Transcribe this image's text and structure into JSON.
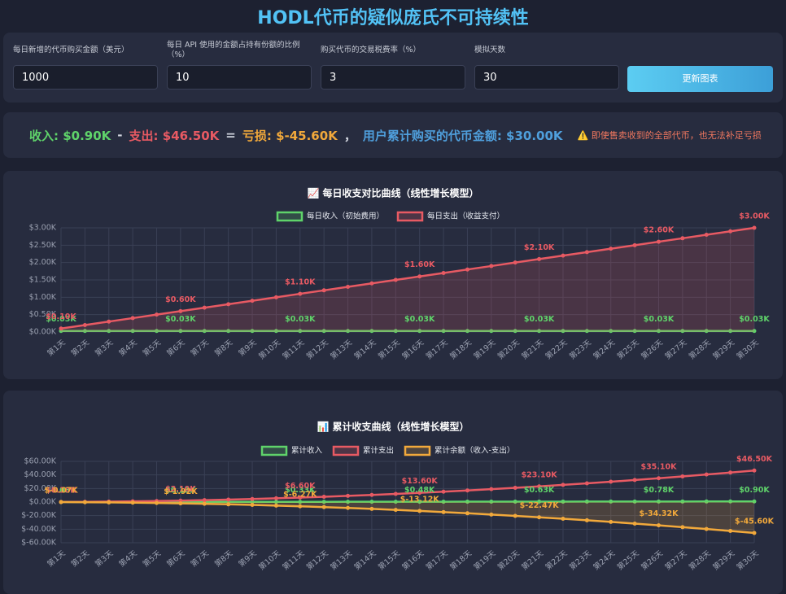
{
  "header": {
    "title": "HODL代币的疑似庞氏不可持续性"
  },
  "controls": {
    "fields": [
      {
        "label": "每日新增的代币购买金额（美元）",
        "value": "1000"
      },
      {
        "label": "每日 API 使用的金额占持有份额的比例（%）",
        "value": "10"
      },
      {
        "label": "购买代币的交易税费率（%）",
        "value": "3"
      },
      {
        "label": "模拟天数",
        "value": "30"
      }
    ],
    "button": "更新图表"
  },
  "summary": {
    "income": "收入: $0.90K",
    "minus": "-",
    "expense": "支出: $46.50K",
    "equals": "=",
    "loss": "亏损: $-45.60K",
    "comma": "，",
    "purchased": "用户累计购买的代币金额: $30.00K",
    "warning": "⚠️ 即使售卖收到的全部代币，也无法补足亏损"
  },
  "chart_data": [
    {
      "type": "line",
      "title": "📈 每日收支对比曲线（线性增长模型）",
      "categories": [
        "第1天",
        "第2天",
        "第3天",
        "第4天",
        "第5天",
        "第6天",
        "第7天",
        "第8天",
        "第9天",
        "第10天",
        "第11天",
        "第12天",
        "第13天",
        "第14天",
        "第15天",
        "第16天",
        "第17天",
        "第18天",
        "第19天",
        "第20天",
        "第21天",
        "第22天",
        "第23天",
        "第24天",
        "第25天",
        "第26天",
        "第27天",
        "第28天",
        "第29天",
        "第30天"
      ],
      "ylim": [
        0,
        3
      ],
      "yticks": [
        {
          "value": 0,
          "label": "$0.00K"
        },
        {
          "value": 0.5,
          "label": "$0.50K"
        },
        {
          "value": 1,
          "label": "$1.00K"
        },
        {
          "value": 1.5,
          "label": "$1.50K"
        },
        {
          "value": 2,
          "label": "$2.00K"
        },
        {
          "value": 2.5,
          "label": "$2.50K"
        },
        {
          "value": 3,
          "label": "$3.00K"
        }
      ],
      "grid": true,
      "series": [
        {
          "name": "每日收入（初始费用）",
          "color": "#5fd36a",
          "fill": false,
          "values": [
            0.03,
            0.03,
            0.03,
            0.03,
            0.03,
            0.03,
            0.03,
            0.03,
            0.03,
            0.03,
            0.03,
            0.03,
            0.03,
            0.03,
            0.03,
            0.03,
            0.03,
            0.03,
            0.03,
            0.03,
            0.03,
            0.03,
            0.03,
            0.03,
            0.03,
            0.03,
            0.03,
            0.03,
            0.03,
            0.03
          ],
          "value_labels": [
            "$0.03K",
            null,
            null,
            null,
            null,
            "$0.03K",
            null,
            null,
            null,
            null,
            "$0.03K",
            null,
            null,
            null,
            null,
            "$0.03K",
            null,
            null,
            null,
            null,
            "$0.03K",
            null,
            null,
            null,
            null,
            "$0.03K",
            null,
            null,
            null,
            "$0.03K"
          ]
        },
        {
          "name": "每日支出（收益支付）",
          "color": "#e85a63",
          "fill": true,
          "values": [
            0.1,
            0.2,
            0.3,
            0.4,
            0.5,
            0.6,
            0.7,
            0.8,
            0.9,
            1,
            1.1,
            1.2,
            1.3,
            1.4,
            1.5,
            1.6,
            1.7,
            1.8,
            1.9,
            2,
            2.1,
            2.2,
            2.3,
            2.4,
            2.5,
            2.6,
            2.7,
            2.8,
            2.9,
            3
          ],
          "value_labels": [
            "$0.10K",
            null,
            null,
            null,
            null,
            "$0.60K",
            null,
            null,
            null,
            null,
            "$1.10K",
            null,
            null,
            null,
            null,
            "$1.60K",
            null,
            null,
            null,
            null,
            "$2.10K",
            null,
            null,
            null,
            null,
            "$2.60K",
            null,
            null,
            null,
            "$3.00K"
          ]
        }
      ]
    },
    {
      "type": "line",
      "title": "📊 累计收支曲线（线性增长模型）",
      "categories": [
        "第1天",
        "第2天",
        "第3天",
        "第4天",
        "第5天",
        "第6天",
        "第7天",
        "第8天",
        "第9天",
        "第10天",
        "第11天",
        "第12天",
        "第13天",
        "第14天",
        "第15天",
        "第16天",
        "第17天",
        "第18天",
        "第19天",
        "第20天",
        "第21天",
        "第22天",
        "第23天",
        "第24天",
        "第25天",
        "第26天",
        "第27天",
        "第28天",
        "第29天",
        "第30天"
      ],
      "ylim": [
        -60,
        60
      ],
      "yticks": [
        {
          "value": -60,
          "label": "$-60.00K"
        },
        {
          "value": -40,
          "label": "$-40.00K"
        },
        {
          "value": -20,
          "label": "$-20.00K"
        },
        {
          "value": 0,
          "label": "$0.00K"
        },
        {
          "value": 20,
          "label": "$20.00K"
        },
        {
          "value": 40,
          "label": "$40.00K"
        },
        {
          "value": 60,
          "label": "$60.00K"
        }
      ],
      "grid": true,
      "series": [
        {
          "name": "累计收入",
          "color": "#5fd36a",
          "fill": false,
          "values": [
            0.03,
            0.06,
            0.09,
            0.12,
            0.15,
            0.18,
            0.21,
            0.24,
            0.27,
            0.3,
            0.33,
            0.36,
            0.39,
            0.42,
            0.45,
            0.48,
            0.51,
            0.54,
            0.57,
            0.6,
            0.63,
            0.66,
            0.69,
            0.72,
            0.75,
            0.78,
            0.81,
            0.84,
            0.87,
            0.9
          ],
          "value_labels": [
            "$0.03K",
            null,
            null,
            null,
            null,
            "$0.18K",
            null,
            null,
            null,
            null,
            "$0.33K",
            null,
            null,
            null,
            null,
            "$0.48K",
            null,
            null,
            null,
            null,
            "$0.63K",
            null,
            null,
            null,
            null,
            "$0.78K",
            null,
            null,
            null,
            "$0.90K"
          ]
        },
        {
          "name": "累计支出",
          "color": "#e85a63",
          "fill": false,
          "values": [
            0.1,
            0.3,
            0.6,
            1,
            1.5,
            2.1,
            2.8,
            3.6,
            4.5,
            5.5,
            6.6,
            7.8,
            9.1,
            10.5,
            12,
            13.6,
            15.3,
            17.1,
            19,
            21,
            23.1,
            25.3,
            27.6,
            30,
            32.5,
            35.1,
            37.8,
            40.6,
            43.5,
            46.5
          ],
          "value_labels": [
            "$0.10K",
            null,
            null,
            null,
            null,
            "$2.10K",
            null,
            null,
            null,
            null,
            "$6.60K",
            null,
            null,
            null,
            null,
            "$13.60K",
            null,
            null,
            null,
            null,
            "$23.10K",
            null,
            null,
            null,
            null,
            "$35.10K",
            null,
            null,
            null,
            "$46.50K"
          ]
        },
        {
          "name": "累计余额（收入-支出）",
          "color": "#f2a93b",
          "fill": true,
          "values": [
            -0.07,
            -0.24,
            -0.51,
            -0.88,
            -1.35,
            -1.92,
            -2.59,
            -3.36,
            -4.23,
            -5.2,
            -6.27,
            -7.44,
            -8.71,
            -10.08,
            -11.55,
            -13.12,
            -14.79,
            -16.56,
            -18.43,
            -20.4,
            -22.47,
            -24.64,
            -26.91,
            -29.28,
            -31.75,
            -34.32,
            -36.99,
            -39.76,
            -42.63,
            -45.6
          ],
          "value_labels": [
            "$-0.07K",
            null,
            null,
            null,
            null,
            "$-1.92K",
            null,
            null,
            null,
            null,
            "$-6.27K",
            null,
            null,
            null,
            null,
            "$-13.12K",
            null,
            null,
            null,
            null,
            "$-22.47K",
            null,
            null,
            null,
            null,
            "$-34.32K",
            null,
            null,
            null,
            "$-45.60K"
          ]
        }
      ]
    }
  ]
}
